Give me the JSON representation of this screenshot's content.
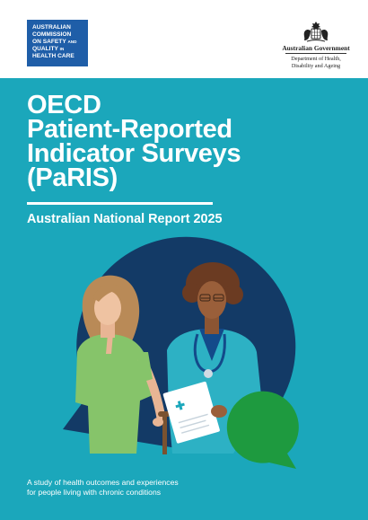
{
  "header": {
    "commission_logo": {
      "line1": "AUSTRALIAN",
      "line2": "COMMISSION",
      "line3": "ON SAFETY",
      "line3_and": "AND",
      "line4": "QUALITY",
      "line4_in": "IN",
      "line5": "HEALTH CARE"
    },
    "government": {
      "name": "Australian Government",
      "department_line1": "Department of Health,",
      "department_line2": "Disability and Ageing"
    }
  },
  "cover": {
    "title_line1": "OECD",
    "title_line2": "Patient-Reported",
    "title_line3": "Indicator Surveys",
    "title_line4": "(PaRIS)",
    "subtitle": "Australian National Report 2025",
    "tagline_line1": "A study of health outcomes and experiences",
    "tagline_line2": "for people living with chronic conditions"
  },
  "colors": {
    "teal": "#1ba7bb",
    "navy": "#133a66",
    "commission_blue": "#1f5ea8",
    "green": "#1e9a3f",
    "patient_shirt": "#86c46a",
    "doctor_coat": "#2db1c4"
  }
}
